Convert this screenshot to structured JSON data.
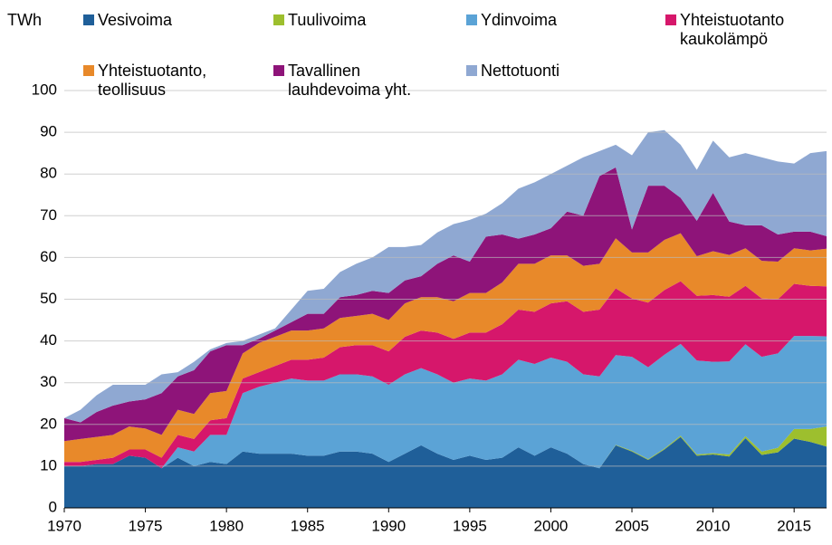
{
  "chart_data": {
    "type": "stacked_area",
    "y_label": "TWh",
    "x": [
      1970,
      1971,
      1972,
      1973,
      1974,
      1975,
      1976,
      1977,
      1978,
      1979,
      1980,
      1981,
      1982,
      1983,
      1984,
      1985,
      1986,
      1987,
      1988,
      1989,
      1990,
      1991,
      1992,
      1993,
      1994,
      1995,
      1996,
      1997,
      1998,
      1999,
      2000,
      2001,
      2002,
      2003,
      2004,
      2005,
      2006,
      2007,
      2008,
      2009,
      2010,
      2011,
      2012,
      2013,
      2014,
      2015,
      2016,
      2017
    ],
    "series": [
      {
        "name": "Vesivoima",
        "color": "#1f5f99",
        "values": [
          10,
          10,
          10.5,
          10.5,
          12.5,
          12,
          9.5,
          12,
          10,
          11,
          10.5,
          13.5,
          13,
          13,
          13,
          12.5,
          12.5,
          13.5,
          13.5,
          13,
          11,
          13,
          15,
          13,
          11.5,
          12.5,
          11.5,
          12,
          14.5,
          12.5,
          14.5,
          13,
          10.5,
          9.5,
          15,
          13.5,
          11.5,
          14,
          17,
          12.5,
          12.8,
          12.3,
          16.7,
          12.7,
          13.3,
          16.6,
          15.8,
          14.7
        ]
      },
      {
        "name": "Tuulivoima",
        "color": "#9dbf2e",
        "values": [
          0,
          0,
          0,
          0,
          0,
          0,
          0,
          0,
          0,
          0,
          0,
          0,
          0,
          0,
          0,
          0,
          0,
          0,
          0,
          0,
          0,
          0,
          0,
          0,
          0,
          0,
          0,
          0,
          0,
          0,
          0,
          0,
          0,
          0,
          0.1,
          0.2,
          0.2,
          0.2,
          0.3,
          0.3,
          0.3,
          0.5,
          0.5,
          0.8,
          1.1,
          2.3,
          3.1,
          4.8
        ]
      },
      {
        "name": "Ydinvoima",
        "color": "#5ba3d6",
        "values": [
          0,
          0,
          0,
          0,
          0,
          0,
          0,
          2.5,
          3.5,
          6.5,
          7,
          14,
          16,
          17,
          18,
          18,
          18,
          18.5,
          18.5,
          18.5,
          18.5,
          19,
          18.5,
          19,
          18.5,
          18.5,
          19,
          20,
          21,
          22,
          21.5,
          22,
          21.5,
          22,
          21.5,
          22.5,
          22,
          22.5,
          22,
          22.5,
          21.9,
          22.3,
          22,
          22.7,
          22.6,
          22.3,
          22.3,
          21.6
        ]
      },
      {
        "name": "Yhteistuotanto kaukolämpö",
        "color": "#d6176b",
        "values": [
          1,
          1,
          1,
          1.5,
          1.5,
          2,
          2.5,
          3,
          3,
          3.5,
          4,
          3.5,
          3.5,
          4,
          4.5,
          5,
          5.5,
          6.5,
          7,
          7.5,
          8,
          9,
          9,
          10,
          10.5,
          11,
          11.5,
          12,
          12,
          12.5,
          13,
          14.5,
          15,
          16,
          16,
          14,
          15.5,
          15.5,
          15,
          15.5,
          16,
          15.5,
          14,
          14,
          13,
          12.5,
          12,
          12
        ]
      },
      {
        "name": "Yhteistuotanto, teollisuus",
        "color": "#e8892a",
        "values": [
          5,
          5.5,
          5.5,
          5.5,
          5.5,
          5,
          5.5,
          6,
          6,
          6.5,
          6.5,
          6,
          7,
          7,
          7,
          7,
          7,
          7,
          7,
          7.5,
          7.5,
          8,
          8,
          8.5,
          9,
          9.5,
          9.5,
          10,
          11,
          11.5,
          11.5,
          11,
          11,
          11,
          12,
          11,
          12,
          12,
          11.5,
          9.5,
          10.5,
          10,
          9,
          9,
          9,
          8.5,
          8.5,
          9
        ]
      },
      {
        "name": "Tavallinen lauhdevoima yht.",
        "color": "#8e1479",
        "values": [
          5.5,
          4,
          6,
          7,
          6,
          7,
          10,
          8,
          10.5,
          10,
          11,
          2,
          1,
          1.5,
          2,
          4,
          3.5,
          5,
          5,
          5.5,
          6.5,
          5.5,
          5,
          8,
          11,
          7.5,
          13.5,
          11.5,
          6,
          7,
          6.5,
          10.5,
          12,
          21,
          17,
          5.5,
          16,
          13,
          8.5,
          8.5,
          14,
          8,
          5.5,
          8.5,
          6.5,
          4,
          4.5,
          3
        ]
      },
      {
        "name": "Nettotuonti",
        "color": "#8fa8d2",
        "values": [
          0,
          3,
          4,
          5,
          4,
          3.5,
          4.5,
          1,
          2,
          0.5,
          0.5,
          1,
          1,
          0.5,
          3,
          5.5,
          6,
          6,
          7.5,
          8,
          11,
          8,
          7.5,
          7.5,
          7.5,
          10,
          5.5,
          7.5,
          12,
          12.5,
          13,
          11,
          14,
          6,
          5.4,
          17.8,
          12.8,
          13.3,
          12.7,
          12.2,
          12.5,
          15.4,
          17.3,
          16.3,
          17.5,
          16.3,
          18.8,
          20.4
        ]
      }
    ],
    "xlim": [
      1970,
      2017
    ],
    "xticks": [
      1970,
      1975,
      1980,
      1985,
      1990,
      1995,
      2000,
      2005,
      2010,
      2015
    ],
    "ylim": [
      0,
      100
    ],
    "yticks": [
      0,
      10,
      20,
      30,
      40,
      50,
      60,
      70,
      80,
      90,
      100
    ],
    "grid": true
  }
}
